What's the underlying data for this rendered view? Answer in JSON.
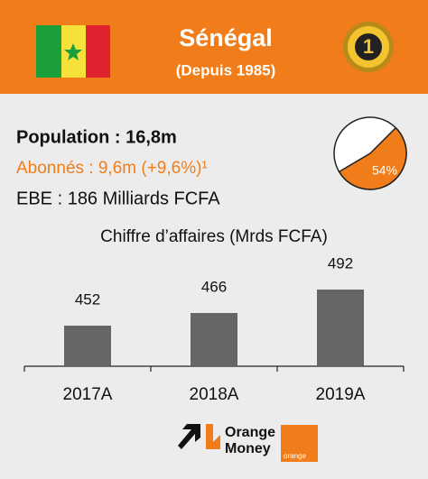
{
  "header": {
    "title": "Sénégal",
    "subtitle": "(Depuis 1985)",
    "rank": "1"
  },
  "stats": {
    "population": "Population : 16,8m",
    "subscribers": "Abonnés : 9,6m (+9,6%)¹",
    "ebe": "EBE : 186 Milliards FCFA"
  },
  "chart_data": [
    {
      "type": "pie",
      "values": [
        54
      ],
      "value_labels": [
        "54%"
      ],
      "color": "#f07d1a"
    },
    {
      "type": "bar",
      "title": "Chiffre d’affaires (Mrds FCFA)",
      "categories": [
        "2017A",
        "2018A",
        "2019A"
      ],
      "values": [
        452,
        466,
        492
      ],
      "color": "#666666",
      "ylim": [
        407,
        507
      ]
    }
  ],
  "logos": {
    "orange_money": [
      "Orange",
      "Money"
    ],
    "orange": "orange"
  }
}
